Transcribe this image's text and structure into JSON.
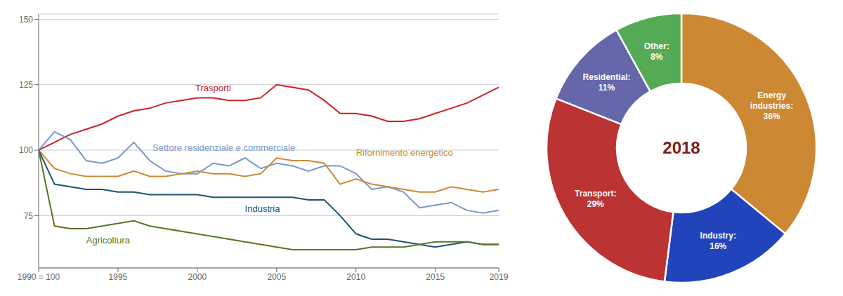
{
  "chart_data": [
    {
      "type": "line",
      "x": [
        1990,
        1991,
        1992,
        1993,
        1994,
        1995,
        1996,
        1997,
        1998,
        1999,
        2000,
        2001,
        2002,
        2003,
        2004,
        2005,
        2006,
        2007,
        2008,
        2009,
        2010,
        2011,
        2012,
        2013,
        2014,
        2015,
        2016,
        2017,
        2018,
        2019
      ],
      "series": [
        {
          "name": "Trasporti",
          "color": "#cc2222",
          "values": [
            100,
            103,
            106,
            108,
            110,
            113,
            115,
            116,
            118,
            119,
            120,
            120,
            119,
            119,
            120,
            125,
            124,
            123,
            119,
            114,
            114,
            113,
            111,
            111,
            112,
            114,
            116,
            118,
            121,
            124
          ]
        },
        {
          "name": "Settore residenziale e commerciale",
          "color": "#7799cc",
          "values": [
            100,
            107,
            104,
            96,
            95,
            97,
            103,
            96,
            92,
            91,
            91,
            95,
            94,
            97,
            93,
            95,
            94,
            92,
            94,
            94,
            91,
            85,
            86,
            84,
            78,
            79,
            80,
            77,
            76,
            77
          ]
        },
        {
          "name": "Rifornimento energetico",
          "color": "#cc8833",
          "values": [
            100,
            93,
            91,
            90,
            90,
            90,
            92,
            90,
            90,
            91,
            92,
            91,
            91,
            90,
            91,
            97,
            96,
            96,
            95,
            87,
            89,
            87,
            86,
            85,
            84,
            84,
            86,
            85,
            84,
            85
          ]
        },
        {
          "name": "Industria",
          "color": "#1a5470",
          "values": [
            100,
            87,
            86,
            85,
            85,
            84,
            84,
            83,
            83,
            83,
            83,
            82,
            82,
            82,
            82,
            82,
            82,
            81,
            81,
            75,
            68,
            66,
            66,
            65,
            64,
            63,
            64,
            65,
            64,
            64
          ]
        },
        {
          "name": "Agricoltura",
          "color": "#557722",
          "values": [
            100,
            71,
            70,
            70,
            71,
            72,
            73,
            71,
            70,
            69,
            68,
            67,
            66,
            65,
            64,
            63,
            62,
            62,
            62,
            62,
            62,
            63,
            63,
            63,
            64,
            65,
            65,
            65,
            64,
            64
          ]
        }
      ],
      "xlim": [
        1990,
        2019
      ],
      "xticks": [
        {
          "value": 1990,
          "label": "1990 = 100"
        },
        1995,
        2000,
        2005,
        2010,
        2015,
        2019
      ],
      "ylim": [
        55,
        152
      ],
      "yticks": [
        75,
        100,
        125,
        150
      ],
      "grid": true
    },
    {
      "type": "pie",
      "values": [
        36,
        16,
        29,
        11,
        8
      ],
      "value_labels": [
        "Energy\nindustries:\n36%",
        "Industry:\n16%",
        "Transport:\n29%",
        "Residential:\n11%",
        "Other:\n8%"
      ],
      "colors": [
        "#cc8833",
        "#2244bb",
        "#bb3333",
        "#6666aa",
        "#55aa55"
      ],
      "data_labels": true,
      "annotations": [
        {
          "text": "2018",
          "color": "#7a2020"
        }
      ]
    }
  ]
}
